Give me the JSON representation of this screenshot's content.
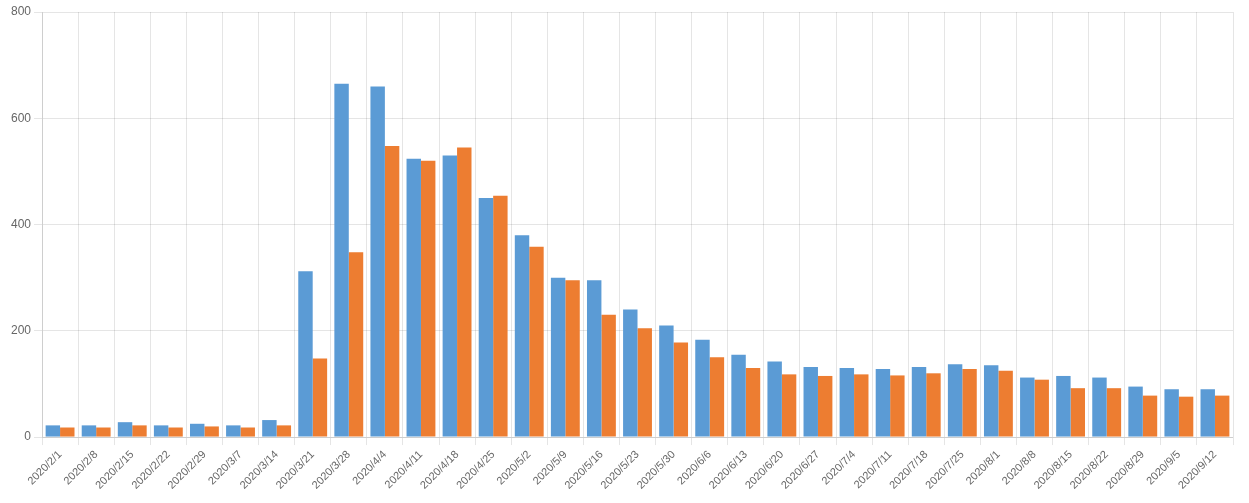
{
  "chart_data": {
    "type": "bar",
    "categories": [
      "2020/2/1",
      "2020/2/8",
      "2020/2/15",
      "2020/2/22",
      "2020/2/29",
      "2020/3/7",
      "2020/3/14",
      "2020/3/21",
      "2020/3/28",
      "2020/4/4",
      "2020/4/11",
      "2020/4/18",
      "2020/4/25",
      "2020/5/2",
      "2020/5/9",
      "2020/5/16",
      "2020/5/23",
      "2020/5/30",
      "2020/6/6",
      "2020/6/13",
      "2020/6/20",
      "2020/6/27",
      "2020/7/4",
      "2020/7/11",
      "2020/7/18",
      "2020/7/25",
      "2020/8/1",
      "2020/8/8",
      "2020/8/15",
      "2020/8/22",
      "2020/8/29",
      "2020/9/5",
      "2020/9/12"
    ],
    "series": [
      {
        "color": "#5b9bd5",
        "values": [
          22,
          22,
          28,
          22,
          25,
          22,
          32,
          312,
          665,
          660,
          524,
          530,
          450,
          380,
          300,
          295,
          240,
          210,
          183,
          155,
          142,
          132,
          130,
          128,
          132,
          137,
          135,
          112,
          115,
          112,
          95,
          90,
          90
        ]
      },
      {
        "color": "#ed7d31",
        "values": [
          18,
          18,
          22,
          18,
          20,
          18,
          22,
          148,
          348,
          548,
          520,
          545,
          454,
          358,
          295,
          230,
          205,
          178,
          150,
          130,
          118,
          115,
          118,
          116,
          120,
          128,
          125,
          108,
          92,
          92,
          78,
          76,
          78
        ]
      }
    ],
    "ylim": [
      0,
      800
    ],
    "yticks": [
      0,
      200,
      400,
      600,
      800
    ],
    "grid": true
  }
}
